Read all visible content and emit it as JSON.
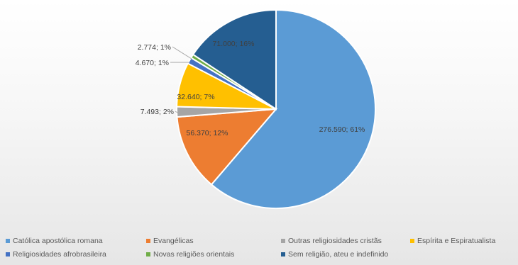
{
  "chart_data": {
    "type": "pie",
    "title": "",
    "slices": [
      {
        "name": "Católica apostólica romana",
        "value": 276590,
        "percent": 61,
        "label": "276.590; 61%",
        "color": "#5B9BD5"
      },
      {
        "name": "Evangélicas",
        "value": 56370,
        "percent": 12,
        "label": "56.370; 12%",
        "color": "#ED7D31"
      },
      {
        "name": "Outras religiosidades cristãs",
        "value": 7493,
        "percent": 2,
        "label": "7.493; 2%",
        "color": "#A5A5A5"
      },
      {
        "name": "Espírita e Espiratualista",
        "value": 32640,
        "percent": 7,
        "label": "32.640; 7%",
        "color": "#FFC000"
      },
      {
        "name": "Religiosidades afrobrasileira",
        "value": 4670,
        "percent": 1,
        "label": "4.670; 1%",
        "color": "#4472C4"
      },
      {
        "name": "Novas religiões orientais",
        "value": 2774,
        "percent": 1,
        "label": "2.774; 1%",
        "color": "#70AD47"
      },
      {
        "name": "Sem religião, ateu e indefinido",
        "value": 71000,
        "percent": 16,
        "label": "71.000; 16%",
        "color": "#255E91"
      }
    ],
    "legend_position": "bottom"
  }
}
